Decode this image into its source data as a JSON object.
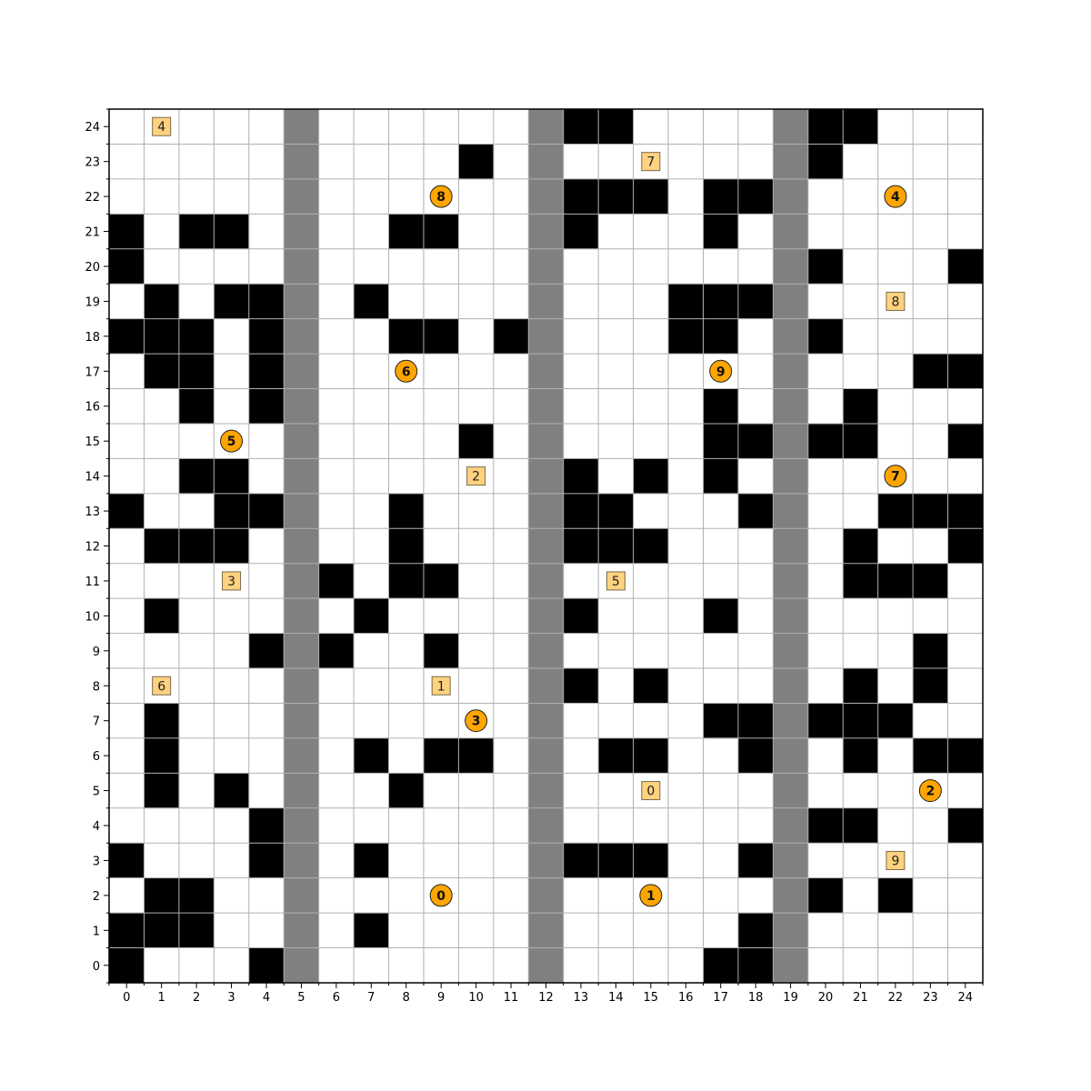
{
  "grid": {
    "cols": 25,
    "rows": 25,
    "x_ticks": [
      "0",
      "1",
      "2",
      "3",
      "4",
      "5",
      "6",
      "7",
      "8",
      "9",
      "10",
      "11",
      "12",
      "13",
      "14",
      "15",
      "16",
      "17",
      "18",
      "19",
      "20",
      "21",
      "22",
      "23",
      "24"
    ],
    "y_ticks": [
      "0",
      "1",
      "2",
      "3",
      "4",
      "5",
      "6",
      "7",
      "8",
      "9",
      "10",
      "11",
      "12",
      "13",
      "14",
      "15",
      "16",
      "17",
      "18",
      "19",
      "20",
      "21",
      "22",
      "23",
      "24"
    ],
    "gray_columns": [
      5,
      12,
      19
    ],
    "black_cells": [
      [
        13,
        24
      ],
      [
        14,
        24
      ],
      [
        20,
        24
      ],
      [
        21,
        24
      ],
      [
        10,
        23
      ],
      [
        20,
        23
      ],
      [
        13,
        22
      ],
      [
        14,
        22
      ],
      [
        15,
        22
      ],
      [
        17,
        22
      ],
      [
        18,
        22
      ],
      [
        0,
        21
      ],
      [
        2,
        21
      ],
      [
        3,
        21
      ],
      [
        8,
        21
      ],
      [
        9,
        21
      ],
      [
        13,
        21
      ],
      [
        17,
        21
      ],
      [
        0,
        20
      ],
      [
        20,
        20
      ],
      [
        24,
        20
      ],
      [
        1,
        19
      ],
      [
        3,
        19
      ],
      [
        4,
        19
      ],
      [
        7,
        19
      ],
      [
        16,
        19
      ],
      [
        17,
        19
      ],
      [
        18,
        19
      ],
      [
        0,
        18
      ],
      [
        1,
        18
      ],
      [
        2,
        18
      ],
      [
        4,
        18
      ],
      [
        8,
        18
      ],
      [
        9,
        18
      ],
      [
        11,
        18
      ],
      [
        16,
        18
      ],
      [
        17,
        18
      ],
      [
        20,
        18
      ],
      [
        1,
        17
      ],
      [
        2,
        17
      ],
      [
        4,
        17
      ],
      [
        23,
        17
      ],
      [
        24,
        17
      ],
      [
        2,
        16
      ],
      [
        4,
        16
      ],
      [
        17,
        16
      ],
      [
        21,
        16
      ],
      [
        10,
        15
      ],
      [
        17,
        15
      ],
      [
        18,
        15
      ],
      [
        20,
        15
      ],
      [
        21,
        15
      ],
      [
        24,
        15
      ],
      [
        2,
        14
      ],
      [
        3,
        14
      ],
      [
        13,
        14
      ],
      [
        15,
        14
      ],
      [
        17,
        14
      ],
      [
        0,
        13
      ],
      [
        3,
        13
      ],
      [
        4,
        13
      ],
      [
        8,
        13
      ],
      [
        13,
        13
      ],
      [
        14,
        13
      ],
      [
        18,
        13
      ],
      [
        22,
        13
      ],
      [
        23,
        13
      ],
      [
        24,
        13
      ],
      [
        1,
        12
      ],
      [
        2,
        12
      ],
      [
        3,
        12
      ],
      [
        8,
        12
      ],
      [
        13,
        12
      ],
      [
        14,
        12
      ],
      [
        15,
        12
      ],
      [
        21,
        12
      ],
      [
        24,
        12
      ],
      [
        6,
        11
      ],
      [
        8,
        11
      ],
      [
        9,
        11
      ],
      [
        21,
        11
      ],
      [
        22,
        11
      ],
      [
        23,
        11
      ],
      [
        1,
        10
      ],
      [
        7,
        10
      ],
      [
        13,
        10
      ],
      [
        17,
        10
      ],
      [
        4,
        9
      ],
      [
        6,
        9
      ],
      [
        9,
        9
      ],
      [
        23,
        9
      ],
      [
        13,
        8
      ],
      [
        15,
        8
      ],
      [
        21,
        8
      ],
      [
        23,
        8
      ],
      [
        1,
        7
      ],
      [
        17,
        7
      ],
      [
        18,
        7
      ],
      [
        20,
        7
      ],
      [
        21,
        7
      ],
      [
        22,
        7
      ],
      [
        1,
        6
      ],
      [
        7,
        6
      ],
      [
        9,
        6
      ],
      [
        10,
        6
      ],
      [
        14,
        6
      ],
      [
        15,
        6
      ],
      [
        18,
        6
      ],
      [
        21,
        6
      ],
      [
        23,
        6
      ],
      [
        24,
        6
      ],
      [
        1,
        5
      ],
      [
        3,
        5
      ],
      [
        8,
        5
      ],
      [
        4,
        4
      ],
      [
        20,
        4
      ],
      [
        21,
        4
      ],
      [
        24,
        4
      ],
      [
        0,
        3
      ],
      [
        4,
        3
      ],
      [
        7,
        3
      ],
      [
        13,
        3
      ],
      [
        14,
        3
      ],
      [
        15,
        3
      ],
      [
        18,
        3
      ],
      [
        1,
        2
      ],
      [
        2,
        2
      ],
      [
        20,
        2
      ],
      [
        22,
        2
      ],
      [
        0,
        1
      ],
      [
        1,
        1
      ],
      [
        2,
        1
      ],
      [
        7,
        1
      ],
      [
        18,
        1
      ],
      [
        0,
        0
      ],
      [
        4,
        0
      ],
      [
        17,
        0
      ],
      [
        18,
        0
      ]
    ],
    "agents": [
      {
        "label": "0",
        "x": 9,
        "y": 2
      },
      {
        "label": "1",
        "x": 15,
        "y": 2
      },
      {
        "label": "2",
        "x": 23,
        "y": 5
      },
      {
        "label": "3",
        "x": 10,
        "y": 7
      },
      {
        "label": "4",
        "x": 22,
        "y": 22
      },
      {
        "label": "5",
        "x": 3,
        "y": 15
      },
      {
        "label": "6",
        "x": 8,
        "y": 17
      },
      {
        "label": "7",
        "x": 22,
        "y": 14
      },
      {
        "label": "8",
        "x": 9,
        "y": 22
      },
      {
        "label": "9",
        "x": 17,
        "y": 17
      }
    ],
    "goals": [
      {
        "label": "0",
        "x": 15,
        "y": 5
      },
      {
        "label": "1",
        "x": 9,
        "y": 8
      },
      {
        "label": "2",
        "x": 10,
        "y": 14
      },
      {
        "label": "3",
        "x": 3,
        "y": 11
      },
      {
        "label": "4",
        "x": 1,
        "y": 24
      },
      {
        "label": "5",
        "x": 14,
        "y": 11
      },
      {
        "label": "6",
        "x": 1,
        "y": 8
      },
      {
        "label": "7",
        "x": 15,
        "y": 23
      },
      {
        "label": "8",
        "x": 22,
        "y": 19
      },
      {
        "label": "9",
        "x": 22,
        "y": 3
      }
    ],
    "colors": {
      "obstacle": "#000000",
      "corridor": "#808080",
      "grid_line": "#b0b0b0",
      "agent_fill": "#ffa500",
      "goal_fill": "#ffd27f",
      "goal_stroke": "#7a6a4a",
      "axis": "#000000"
    }
  }
}
